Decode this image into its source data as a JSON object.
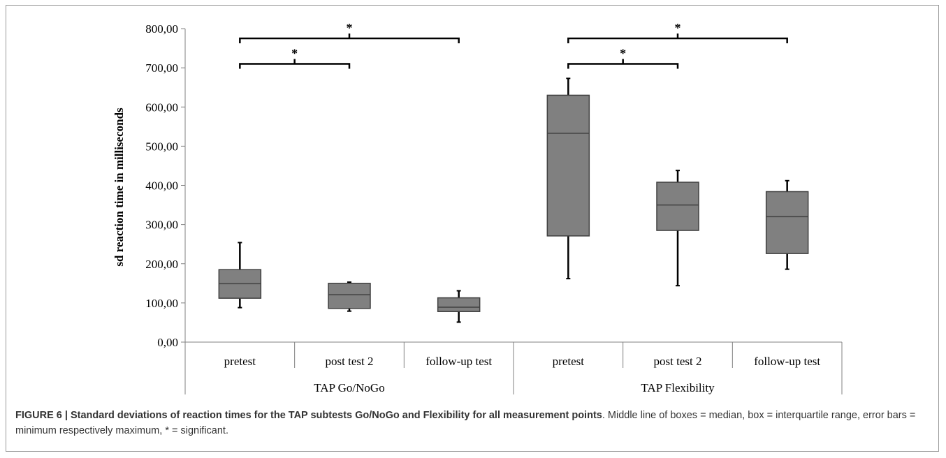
{
  "colors": {
    "box_fill": "#808080",
    "box_stroke": "#404040",
    "whisker": "#000000",
    "axis": "#808080"
  },
  "chart_data": {
    "type": "box",
    "ylabel": "sd reaction time in milliseconds",
    "ylim": [
      0,
      800
    ],
    "yticks": [
      "0,00",
      "100,00",
      "200,00",
      "300,00",
      "400,00",
      "500,00",
      "600,00",
      "700,00",
      "800,00"
    ],
    "grid": false,
    "groups": [
      {
        "label": "TAP Go/NoGo",
        "categories": [
          "pretest",
          "post test 2",
          "follow-up test"
        ],
        "boxes": [
          {
            "min": 88,
            "q1": 112,
            "median": 149,
            "q3": 185,
            "max": 254
          },
          {
            "min": 79,
            "q1": 86,
            "median": 121,
            "q3": 150,
            "max": 153
          },
          {
            "min": 51,
            "q1": 78,
            "median": 89,
            "q3": 113,
            "max": 131
          }
        ]
      },
      {
        "label": "TAP Flexibility",
        "categories": [
          "pretest",
          "post test 2",
          "follow-up test"
        ],
        "boxes": [
          {
            "min": 162,
            "q1": 271,
            "median": 533,
            "q3": 630,
            "max": 673
          },
          {
            "min": 144,
            "q1": 285,
            "median": 350,
            "q3": 408,
            "max": 438
          },
          {
            "min": 186,
            "q1": 226,
            "median": 320,
            "q3": 384,
            "max": 412
          }
        ]
      }
    ],
    "significance": [
      {
        "group": 0,
        "from": 0,
        "to": 1,
        "label": "*",
        "level": 710
      },
      {
        "group": 0,
        "from": 0,
        "to": 2,
        "label": "*",
        "level": 775
      },
      {
        "group": 1,
        "from": 0,
        "to": 1,
        "label": "*",
        "level": 710
      },
      {
        "group": 1,
        "from": 0,
        "to": 2,
        "label": "*",
        "level": 775
      }
    ]
  },
  "caption": {
    "bold": "FIGURE 6 | Standard deviations of reaction times for the TAP subtests Go/NoGo and Flexibility for all measurement points",
    "text": ". Middle line of boxes = median, box = interquartile range, error bars = minimum respectively maximum, * = significant."
  }
}
